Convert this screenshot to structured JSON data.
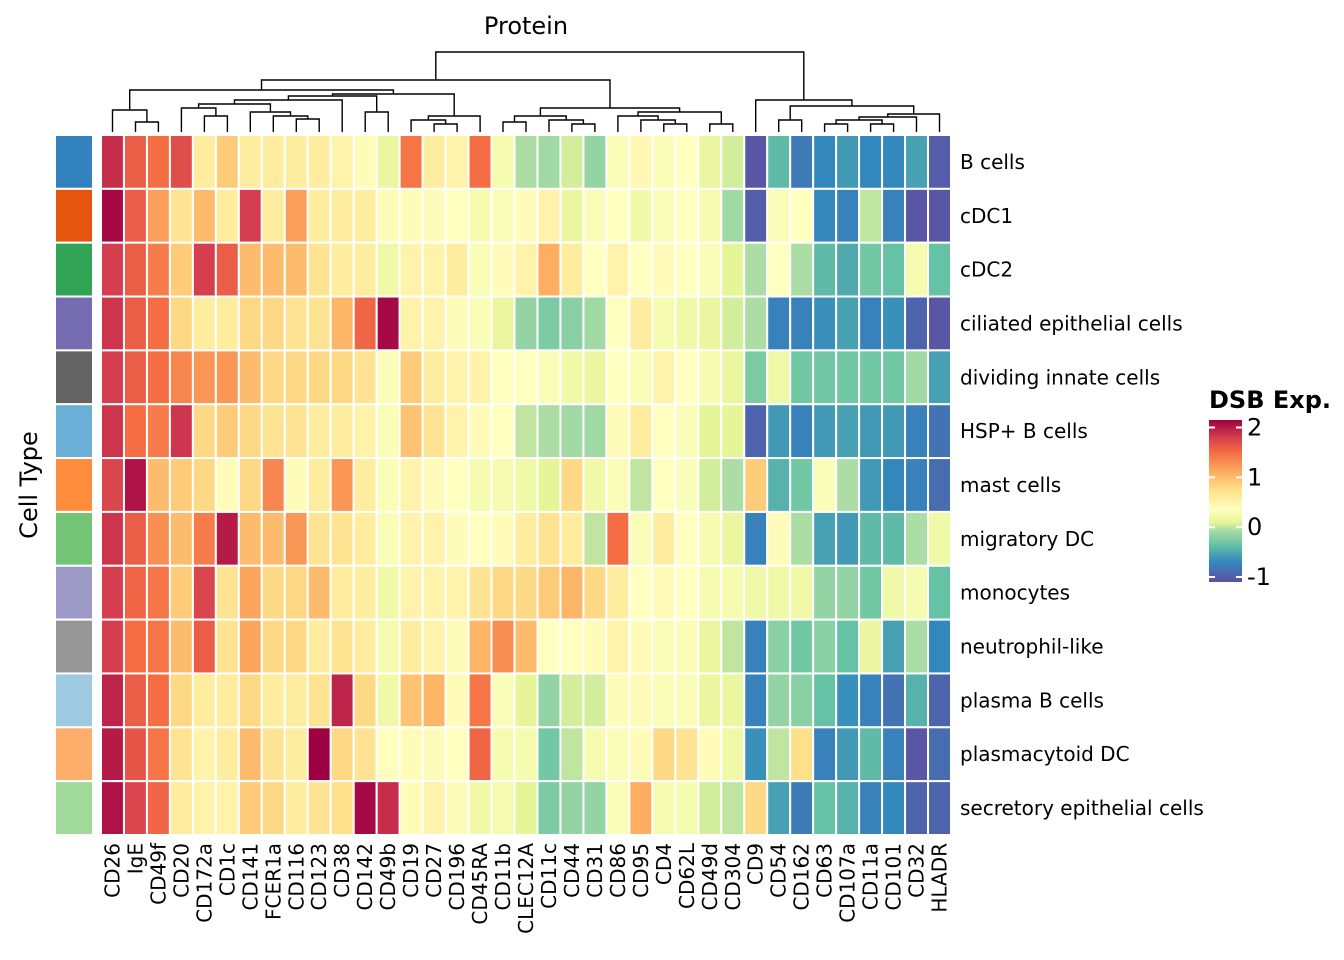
{
  "chart_data": {
    "type": "heatmap",
    "title": "Protein",
    "ylabel": "Cell Type",
    "legend": {
      "title": "DSB Exp.",
      "ticks": [
        2,
        1,
        0,
        -1
      ],
      "tick_labels": [
        "2",
        "1",
        "0",
        "-1"
      ],
      "range": [
        -1.1,
        2.15
      ],
      "placement": "right"
    },
    "color_scale": {
      "name": "Spectral (reversed)",
      "stops": [
        {
          "v": -1.1,
          "color": "#5e4fa2"
        },
        {
          "v": -0.7,
          "color": "#3288bd"
        },
        {
          "v": -0.35,
          "color": "#66c2a5"
        },
        {
          "v": -0.05,
          "color": "#abdda4"
        },
        {
          "v": 0.1,
          "color": "#e6f598"
        },
        {
          "v": 0.35,
          "color": "#ffffbf"
        },
        {
          "v": 0.75,
          "color": "#fee08b"
        },
        {
          "v": 1.1,
          "color": "#fdae61"
        },
        {
          "v": 1.5,
          "color": "#f46d43"
        },
        {
          "v": 1.8,
          "color": "#d53e4f"
        },
        {
          "v": 2.15,
          "color": "#9e0142"
        }
      ]
    },
    "columns": [
      "CD26",
      "IgE",
      "CD49f",
      "CD20",
      "CD172a",
      "CD1c",
      "CD141",
      "FCER1a",
      "CD116",
      "CD123",
      "CD38",
      "CD142",
      "CD49b",
      "CD19",
      "CD27",
      "CD196",
      "CD45RA",
      "CD11b",
      "CLEC12A",
      "CD11c",
      "CD44",
      "CD31",
      "CD86",
      "CD95",
      "CD4",
      "CD62L",
      "CD49d",
      "CD304",
      "CD9",
      "CD54",
      "CD162",
      "CD63",
      "CD107a",
      "CD11a",
      "CD101",
      "CD32",
      "HLADR"
    ],
    "rows": [
      {
        "name": "B cells",
        "color": "#3182bd"
      },
      {
        "name": "cDC1",
        "color": "#e6550d"
      },
      {
        "name": "cDC2",
        "color": "#31a354"
      },
      {
        "name": "ciliated epithelial cells",
        "color": "#756bb1"
      },
      {
        "name": "dividing innate cells",
        "color": "#636363"
      },
      {
        "name": "HSP+ B cells",
        "color": "#6baed6"
      },
      {
        "name": "mast cells",
        "color": "#fd8d3c"
      },
      {
        "name": "migratory DC",
        "color": "#74c476"
      },
      {
        "name": "monocytes",
        "color": "#9e9ac8"
      },
      {
        "name": "neutrophil-like",
        "color": "#969696"
      },
      {
        "name": "plasma B cells",
        "color": "#9ecae1"
      },
      {
        "name": "plasmacytoid DC",
        "color": "#fdae6b"
      },
      {
        "name": "secretory epithelial cells",
        "color": "#a1d99b"
      }
    ],
    "values": [
      [
        1.9,
        1.6,
        1.5,
        1.7,
        0.6,
        0.9,
        0.6,
        0.6,
        0.6,
        0.6,
        0.5,
        0.4,
        0.15,
        1.45,
        0.6,
        0.5,
        1.5,
        0.25,
        -0.05,
        -0.1,
        0.05,
        -0.15,
        0.3,
        0.45,
        0.3,
        0.35,
        0.15,
        0.05,
        -1.05,
        -0.4,
        -0.8,
        -0.7,
        -0.6,
        -0.7,
        -0.7,
        -0.55,
        -1.0
      ],
      [
        2.1,
        1.6,
        1.2,
        0.7,
        1.0,
        0.6,
        1.8,
        0.6,
        1.2,
        0.6,
        0.6,
        0.6,
        0.4,
        0.4,
        0.4,
        0.35,
        0.25,
        0.3,
        0.4,
        0.5,
        0.15,
        0.3,
        0.35,
        0.2,
        0.3,
        0.35,
        0.25,
        -0.1,
        -1.0,
        0.3,
        0.35,
        -0.7,
        -0.75,
        0.0,
        -0.75,
        -1.05,
        -1.05
      ],
      [
        1.8,
        1.6,
        1.4,
        0.9,
        1.8,
        1.6,
        1.0,
        1.0,
        1.0,
        0.7,
        0.6,
        0.6,
        0.2,
        0.5,
        0.5,
        0.6,
        0.3,
        0.4,
        0.5,
        1.1,
        0.6,
        0.35,
        0.5,
        0.35,
        0.4,
        0.35,
        0.3,
        0.1,
        -0.05,
        0.35,
        -0.05,
        -0.4,
        -0.5,
        -0.3,
        -0.35,
        0.25,
        -0.35
      ],
      [
        1.85,
        1.6,
        1.5,
        0.8,
        0.6,
        0.6,
        0.8,
        0.8,
        0.7,
        0.7,
        1.05,
        1.55,
        2.1,
        0.5,
        0.5,
        0.4,
        0.3,
        0.15,
        -0.15,
        -0.25,
        -0.2,
        -0.1,
        0.35,
        0.6,
        0.25,
        0.2,
        0.15,
        0.05,
        -0.05,
        -0.75,
        -0.75,
        -0.65,
        -0.55,
        -0.75,
        -0.65,
        -0.95,
        -1.05
      ],
      [
        1.8,
        1.6,
        1.5,
        1.35,
        1.25,
        1.25,
        1.0,
        0.8,
        0.8,
        0.8,
        0.8,
        0.7,
        0.3,
        0.9,
        0.6,
        0.5,
        0.5,
        0.35,
        0.35,
        0.3,
        0.2,
        0.15,
        0.35,
        0.3,
        0.5,
        0.35,
        0.25,
        0.15,
        -0.25,
        0.2,
        -0.3,
        -0.3,
        -0.3,
        -0.3,
        -0.3,
        -0.1,
        -0.55
      ],
      [
        1.85,
        1.5,
        1.4,
        1.85,
        0.8,
        0.9,
        0.8,
        0.7,
        0.7,
        0.6,
        0.6,
        0.5,
        0.3,
        0.95,
        0.7,
        0.5,
        0.4,
        0.35,
        0.0,
        -0.05,
        -0.1,
        -0.1,
        0.4,
        0.6,
        0.35,
        0.3,
        0.1,
        0.1,
        -0.95,
        -0.6,
        -0.75,
        -0.6,
        -0.55,
        -0.6,
        -0.6,
        -0.75,
        -0.85
      ],
      [
        1.75,
        2.05,
        1.0,
        0.9,
        0.8,
        0.4,
        0.8,
        1.35,
        0.4,
        0.6,
        1.25,
        0.6,
        0.3,
        0.5,
        0.4,
        0.35,
        0.25,
        0.25,
        0.2,
        0.1,
        0.8,
        0.2,
        0.3,
        0.0,
        0.35,
        0.3,
        0.05,
        -0.05,
        0.9,
        -0.45,
        -0.3,
        0.3,
        -0.05,
        -0.6,
        -0.7,
        -0.75,
        -0.9
      ],
      [
        1.85,
        1.6,
        1.3,
        1.0,
        1.4,
        2.0,
        1.0,
        1.0,
        1.25,
        0.7,
        0.7,
        0.6,
        0.3,
        0.5,
        0.5,
        0.4,
        0.35,
        0.4,
        0.6,
        0.7,
        0.6,
        0.0,
        1.5,
        0.3,
        0.6,
        0.35,
        0.25,
        0.15,
        -0.75,
        0.4,
        -0.05,
        -0.55,
        -0.6,
        -0.4,
        -0.4,
        -0.05,
        0.2
      ],
      [
        1.8,
        1.55,
        1.45,
        0.9,
        1.75,
        0.7,
        1.15,
        0.8,
        0.8,
        1.0,
        0.6,
        0.6,
        0.2,
        0.5,
        0.5,
        0.5,
        0.7,
        0.8,
        0.8,
        0.9,
        1.05,
        0.8,
        0.6,
        0.35,
        0.4,
        0.35,
        0.25,
        0.25,
        0.2,
        0.2,
        0.2,
        -0.15,
        -0.15,
        -0.3,
        0.2,
        0.25,
        -0.35
      ],
      [
        1.8,
        1.5,
        1.45,
        1.0,
        1.6,
        0.7,
        1.15,
        0.8,
        0.8,
        0.6,
        0.7,
        0.6,
        0.25,
        0.6,
        0.5,
        0.4,
        1.05,
        1.3,
        1.0,
        0.35,
        0.35,
        0.4,
        0.5,
        0.4,
        0.3,
        0.3,
        0.15,
        0.0,
        -0.75,
        -0.2,
        -0.3,
        -0.2,
        -0.35,
        0.15,
        -0.55,
        -0.05,
        -0.7
      ],
      [
        1.95,
        1.6,
        1.5,
        0.8,
        0.6,
        0.6,
        0.8,
        0.6,
        0.6,
        0.7,
        1.95,
        0.8,
        0.2,
        0.95,
        1.05,
        0.4,
        1.45,
        0.3,
        0.1,
        -0.15,
        0.05,
        0.05,
        0.4,
        0.4,
        0.3,
        0.3,
        0.15,
        0.15,
        -0.75,
        -0.15,
        -0.2,
        -0.35,
        -0.65,
        -0.75,
        -0.85,
        -0.45,
        -0.95
      ],
      [
        2.0,
        1.65,
        1.45,
        0.7,
        0.5,
        0.6,
        1.0,
        0.7,
        0.6,
        2.15,
        0.8,
        0.7,
        0.35,
        0.4,
        0.4,
        0.35,
        1.55,
        0.25,
        0.25,
        -0.3,
        0.0,
        0.25,
        0.3,
        0.4,
        0.8,
        0.7,
        0.4,
        0.2,
        -0.65,
        0.0,
        0.75,
        -0.75,
        -0.6,
        -0.4,
        -0.75,
        -1.05,
        -0.9
      ],
      [
        2.05,
        1.75,
        1.55,
        0.6,
        0.5,
        0.5,
        0.9,
        0.8,
        0.6,
        0.7,
        0.75,
        2.1,
        1.9,
        0.4,
        0.5,
        0.4,
        0.2,
        0.25,
        0.1,
        -0.25,
        -0.15,
        -0.15,
        0.3,
        1.1,
        0.25,
        0.25,
        0.05,
        0.0,
        0.8,
        -0.55,
        -0.8,
        -0.35,
        -0.45,
        -0.75,
        -0.7,
        -0.95,
        -0.95
      ]
    ]
  }
}
